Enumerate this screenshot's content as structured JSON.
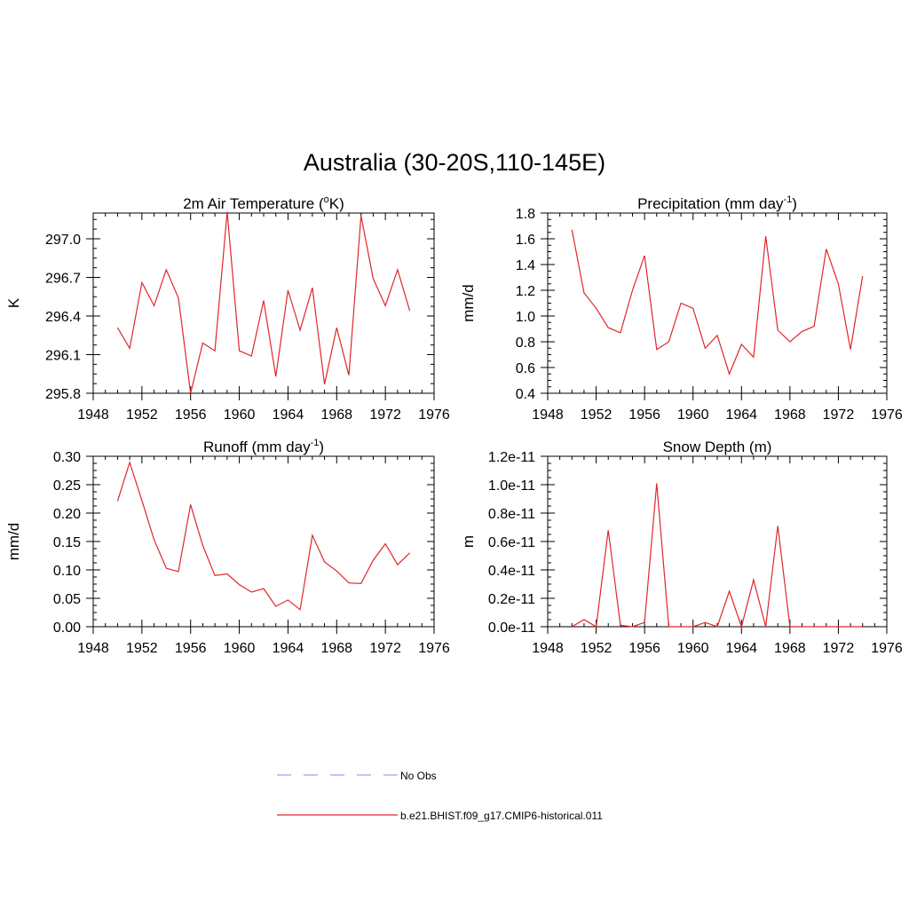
{
  "title": "Australia (30-20S,110-145E)",
  "colors": {
    "model": "#e0262b",
    "obs": "#a0a0f0",
    "axis": "#000000"
  },
  "legend": [
    {
      "label": "No Obs",
      "style": "dashed",
      "color": "#a0a0f0"
    },
    {
      "label": "b.e21.BHIST.f09_g17.CMIP6-historical.011",
      "style": "solid",
      "color": "#e0262b"
    }
  ],
  "chart_data": [
    {
      "id": "t2m",
      "type": "line",
      "title": "2m Air Temperature (",
      "title_sup": "o",
      "title_tail": "K)",
      "ylabel": "K",
      "xlim": [
        1948,
        1976
      ],
      "ylim": [
        295.8,
        297.2
      ],
      "xticks": [
        1948,
        1952,
        1956,
        1960,
        1964,
        1968,
        1972,
        1976
      ],
      "yticks": [
        295.8,
        296.1,
        296.4,
        296.7,
        297.0
      ],
      "ytick_labels": [
        "295.8",
        "296.1",
        "296.4",
        "296.7",
        "297.0"
      ],
      "x": [
        1950,
        1951,
        1952,
        1953,
        1954,
        1955,
        1956,
        1957,
        1958,
        1959,
        1960,
        1961,
        1962,
        1963,
        1964,
        1965,
        1966,
        1967,
        1968,
        1969,
        1970,
        1971,
        1972,
        1973,
        1974
      ],
      "series": [
        {
          "values": [
            296.31,
            296.15,
            296.66,
            296.48,
            296.76,
            296.54,
            295.8,
            296.19,
            296.13,
            297.21,
            296.13,
            296.09,
            296.52,
            295.93,
            296.6,
            296.29,
            296.62,
            295.87,
            296.31,
            295.94,
            297.18,
            296.69,
            296.48,
            296.76,
            296.44
          ]
        }
      ]
    },
    {
      "id": "precip",
      "type": "line",
      "title": "Precipitation (mm day",
      "title_sup": "-1",
      "title_tail": ")",
      "ylabel": "mm/d",
      "xlim": [
        1948,
        1976
      ],
      "ylim": [
        0.4,
        1.8
      ],
      "xticks": [
        1948,
        1952,
        1956,
        1960,
        1964,
        1968,
        1972,
        1976
      ],
      "yticks": [
        0.4,
        0.6,
        0.8,
        1.0,
        1.2,
        1.4,
        1.6,
        1.8
      ],
      "ytick_labels": [
        "0.4",
        "0.6",
        "0.8",
        "1.0",
        "1.2",
        "1.4",
        "1.6",
        "1.8"
      ],
      "x": [
        1950,
        1951,
        1952,
        1953,
        1954,
        1955,
        1956,
        1957,
        1958,
        1959,
        1960,
        1961,
        1962,
        1963,
        1964,
        1965,
        1966,
        1967,
        1968,
        1969,
        1970,
        1971,
        1972,
        1973,
        1974
      ],
      "series": [
        {
          "values": [
            1.67,
            1.18,
            1.06,
            0.91,
            0.87,
            1.2,
            1.47,
            0.74,
            0.8,
            1.1,
            1.06,
            0.75,
            0.85,
            0.55,
            0.78,
            0.68,
            1.62,
            0.89,
            0.8,
            0.88,
            0.92,
            1.52,
            1.25,
            0.74,
            1.31
          ]
        }
      ]
    },
    {
      "id": "runoff",
      "type": "line",
      "title": "Runoff (mm day",
      "title_sup": "-1",
      "title_tail": ")",
      "ylabel": "mm/d",
      "xlim": [
        1948,
        1976
      ],
      "ylim": [
        0.0,
        0.3
      ],
      "xticks": [
        1948,
        1952,
        1956,
        1960,
        1964,
        1968,
        1972,
        1976
      ],
      "yticks": [
        0.0,
        0.05,
        0.1,
        0.15,
        0.2,
        0.25,
        0.3
      ],
      "ytick_labels": [
        "0.00",
        "0.05",
        "0.10",
        "0.15",
        "0.20",
        "0.25",
        "0.30"
      ],
      "x": [
        1950,
        1951,
        1952,
        1953,
        1954,
        1955,
        1956,
        1957,
        1958,
        1959,
        1960,
        1961,
        1962,
        1963,
        1964,
        1965,
        1966,
        1967,
        1968,
        1969,
        1970,
        1971,
        1972,
        1973,
        1974
      ],
      "series": [
        {
          "values": [
            0.221,
            0.289,
            0.222,
            0.153,
            0.103,
            0.097,
            0.215,
            0.143,
            0.09,
            0.093,
            0.074,
            0.061,
            0.067,
            0.036,
            0.047,
            0.03,
            0.161,
            0.114,
            0.098,
            0.077,
            0.076,
            0.117,
            0.146,
            0.109,
            0.13
          ]
        }
      ]
    },
    {
      "id": "snow",
      "type": "line",
      "title": "Snow Depth (m)",
      "title_sup": "",
      "title_tail": "",
      "ylabel": "m",
      "xlim": [
        1948,
        1976
      ],
      "ylim": [
        0.0,
        1.2e-11
      ],
      "xticks": [
        1948,
        1952,
        1956,
        1960,
        1964,
        1968,
        1972,
        1976
      ],
      "yticks": [
        0.0,
        2e-12,
        4e-12,
        6e-12,
        8e-12,
        1e-11,
        1.2e-11
      ],
      "ytick_labels": [
        "0.0e-11",
        "0.2e-11",
        "0.4e-11",
        "0.6e-11",
        "0.8e-11",
        "1.0e-11",
        "1.2e-11"
      ],
      "x": [
        1950,
        1951,
        1952,
        1953,
        1954,
        1955,
        1956,
        1957,
        1958,
        1959,
        1960,
        1961,
        1962,
        1963,
        1964,
        1965,
        1966,
        1967,
        1968,
        1969,
        1970,
        1971,
        1972,
        1973,
        1974
      ],
      "series": [
        {
          "values": [
            0.0,
            5e-13,
            0.0,
            6.8e-12,
            1e-13,
            0.0,
            3e-13,
            1.01e-11,
            0.0,
            0.0,
            0.0,
            3e-13,
            0.0,
            2.5e-12,
            0.0,
            3.3e-12,
            0.0,
            7.1e-12,
            0.0,
            0.0,
            0.0,
            0.0,
            0.0,
            0.0,
            0.0
          ]
        }
      ]
    }
  ]
}
